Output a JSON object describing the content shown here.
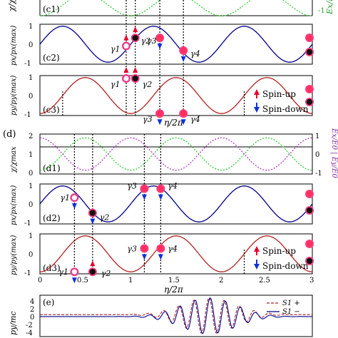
{
  "figure": {
    "panel_d_label": "(d)",
    "x_axis_title": "η/2π",
    "x_ticks": [
      "0",
      "0.5",
      "1",
      "1.5",
      "2",
      "2.5",
      "3"
    ],
    "legend_spin_up": "Spin-up",
    "legend_spin_down": "Spin-down",
    "colors": {
      "blue_curve": "#00008b",
      "red_curve": "#b22222",
      "ex_curve": "#32cd32",
      "ey_curve": "#b03cc8",
      "up_arrow": "#e8002a",
      "down_arrow": "#1030e0"
    }
  },
  "panels": {
    "c1": {
      "label": "(c1)",
      "ylabel": "χ/χ",
      "right_label": "Ex/E0",
      "right_tick": "-1"
    },
    "c2": {
      "label": "(c2)",
      "ylabel": "px/px(max)",
      "yticks": [
        "1",
        "0",
        "-1"
      ],
      "gammas": [
        "γ1",
        "γ2",
        "γ3",
        "γ4"
      ]
    },
    "c3": {
      "label": "(c3)",
      "ylabel": "py/py(max)",
      "yticks": [
        "1",
        "0",
        "-1"
      ],
      "gammas": [
        "γ1",
        "γ2",
        "γ3",
        "γ4"
      ]
    },
    "d1": {
      "label": "(d1)",
      "ylabel": "χ/χmax",
      "yticks": [
        "2",
        "1",
        "0"
      ],
      "right_label": "Ex/E0 | Ey/E0",
      "right_ticks": [
        "1",
        "0",
        "-1"
      ]
    },
    "d2": {
      "label": "(d2)",
      "ylabel": "px/px(max)",
      "yticks": [
        "1",
        "0",
        "-1"
      ],
      "gammas": [
        "γ1",
        "γ2",
        "γ3",
        "γ4"
      ]
    },
    "d3": {
      "label": "(d3)",
      "ylabel": "py/py(max)",
      "yticks": [
        "1",
        "0",
        "-1"
      ],
      "gammas": [
        "γ1",
        "γ2",
        "γ3",
        "γ4"
      ]
    },
    "e": {
      "label": "(e)",
      "ylabel": "py/mc",
      "yticks": [
        "4",
        "2",
        "0",
        "-2",
        "-4"
      ],
      "legend": [
        "S1 +",
        "S1 −"
      ]
    }
  },
  "chart_data": [
    {
      "type": "line",
      "panel": "c2",
      "x_range": [
        0,
        3
      ],
      "ylim": [
        -1,
        1
      ],
      "series": [
        {
          "values_desc": "sinusoid, peaks at x≈0.25,1.25,2.25"
        }
      ],
      "markers": [
        {
          "name": "γ1",
          "x": 0.95,
          "y": -0.1,
          "spin": "up"
        },
        {
          "name": "γ2",
          "x": 1.05,
          "y": 0.35,
          "spin": "up"
        },
        {
          "name": "γ3",
          "x": 1.32,
          "y": 0.35,
          "spin": "down"
        },
        {
          "name": "γ4",
          "x": 1.58,
          "y": -0.35,
          "spin": "down"
        }
      ]
    },
    {
      "type": "line",
      "panel": "c3",
      "x_range": [
        0,
        3
      ],
      "ylim": [
        -1,
        1
      ],
      "markers": [
        {
          "name": "γ1",
          "x": 0.95,
          "y": 0.95,
          "spin": "up"
        },
        {
          "name": "γ2",
          "x": 1.05,
          "y": 0.95,
          "spin": "up"
        },
        {
          "name": "γ3",
          "x": 1.32,
          "y": -1.0,
          "spin": "down"
        },
        {
          "name": "γ4",
          "x": 1.58,
          "y": -1.0,
          "spin": "down"
        }
      ]
    },
    {
      "type": "line",
      "panel": "d1",
      "x_range": [
        0,
        3
      ],
      "ylim": [
        0,
        2
      ]
    },
    {
      "type": "line",
      "panel": "d2",
      "x_range": [
        0,
        3
      ],
      "ylim": [
        -1,
        1
      ],
      "markers": [
        {
          "name": "γ1",
          "x": 0.38,
          "y": 0.35,
          "spin": "down"
        },
        {
          "name": "γ2",
          "x": 0.58,
          "y": -0.5,
          "spin": "down"
        },
        {
          "name": "γ3",
          "x": 1.15,
          "y": 0.85,
          "spin": "down"
        },
        {
          "name": "γ4",
          "x": 1.33,
          "y": 0.85,
          "spin": "down"
        }
      ]
    },
    {
      "type": "line",
      "panel": "d3",
      "x_range": [
        0,
        3
      ],
      "ylim": [
        -1,
        1
      ],
      "markers": [
        {
          "name": "γ1",
          "x": 0.38,
          "y": -1.0,
          "spin": "down"
        },
        {
          "name": "γ2",
          "x": 0.58,
          "y": -1.0,
          "spin": "up"
        },
        {
          "name": "γ3",
          "x": 1.15,
          "y": 0.3,
          "spin": "down"
        },
        {
          "name": "γ4",
          "x": 1.33,
          "y": 0.3,
          "spin": "down"
        }
      ]
    },
    {
      "type": "line",
      "panel": "e",
      "ylim": [
        -6,
        6
      ],
      "series": [
        {
          "name": "S1 +"
        },
        {
          "name": "S1 −"
        }
      ]
    }
  ]
}
